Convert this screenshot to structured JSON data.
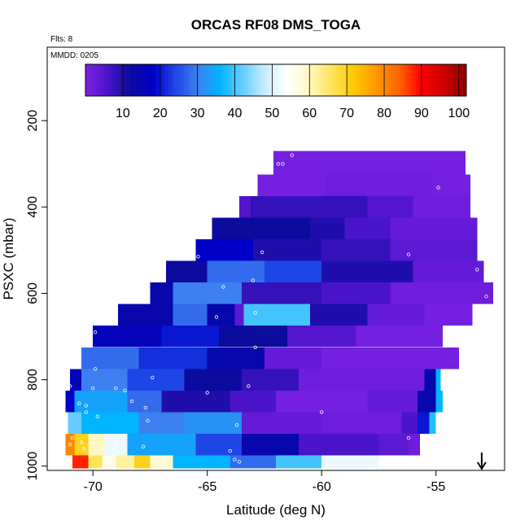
{
  "chart_data": {
    "type": "heatmap",
    "title": "ORCAS RF08 DMS_TOGA",
    "annotations": {
      "flights": "Flts: 8",
      "date": "MMDD: 0205"
    },
    "xlabel": "Latitude (deg N)",
    "ylabel": "PSXC (mbar)",
    "xlim": [
      -72,
      -52
    ],
    "ylim": [
      1010,
      30
    ],
    "y_reversed": true,
    "x_ticks": [
      -70,
      -65,
      -60,
      -55
    ],
    "y_ticks": [
      200,
      400,
      600,
      800,
      1000
    ],
    "colorbar": {
      "range": [
        0,
        102
      ],
      "ticks": [
        10,
        20,
        30,
        40,
        50,
        60,
        70,
        80,
        90,
        100
      ],
      "palette": [
        "#7e22e5",
        "#4a14c8",
        "#0b0b9e",
        "#0000c8",
        "#1e46e6",
        "#3c7ff0",
        "#00b4ff",
        "#66ccff",
        "#c8ecff",
        "#ffffff",
        "#fff7c0",
        "#ffe45a",
        "#ffc800",
        "#ff9600",
        "#ff6400",
        "#ff0000",
        "#cd0000",
        "#8b0000"
      ]
    },
    "marker": {
      "symbol": "arrow-down",
      "latitude": -53.0
    },
    "bands": [
      {
        "p_top": 270,
        "p_bot": 325,
        "segments": [
          [
            -62.1,
            -53.7,
            1
          ]
        ]
      },
      {
        "p_top": 325,
        "p_bot": 375,
        "segments": [
          [
            -62.8,
            -59.8,
            1
          ],
          [
            -59.8,
            -55.2,
            2
          ],
          [
            -55.2,
            -53.5,
            1
          ]
        ]
      },
      {
        "p_top": 375,
        "p_bot": 425,
        "segments": [
          [
            -63.6,
            -63.1,
            5
          ],
          [
            -63.1,
            -58.0,
            8
          ],
          [
            -58.0,
            -56.0,
            5
          ],
          [
            -56.0,
            -53.5,
            2
          ]
        ]
      },
      {
        "p_top": 425,
        "p_bot": 475,
        "segments": [
          [
            -64.8,
            -60.5,
            12
          ],
          [
            -60.5,
            -59.0,
            10
          ],
          [
            -59.0,
            -57.0,
            6
          ],
          [
            -57.0,
            -53.2,
            3
          ]
        ]
      },
      {
        "p_top": 475,
        "p_bot": 525,
        "segments": [
          [
            -65.5,
            -63.0,
            18
          ],
          [
            -63.0,
            -60.0,
            10
          ],
          [
            -60.0,
            -57.0,
            8
          ],
          [
            -57.0,
            -53.2,
            4
          ]
        ]
      },
      {
        "p_top": 525,
        "p_bot": 575,
        "segments": [
          [
            -66.8,
            -65.0,
            12
          ],
          [
            -65.0,
            -62.5,
            28
          ],
          [
            -62.5,
            -60.0,
            24
          ],
          [
            -60.0,
            -56.0,
            10
          ],
          [
            -56.0,
            -52.9,
            3
          ]
        ]
      },
      {
        "p_top": 575,
        "p_bot": 625,
        "segments": [
          [
            -67.5,
            -66.5,
            14
          ],
          [
            -66.5,
            -63.5,
            30
          ],
          [
            -63.5,
            -60.0,
            8
          ],
          [
            -60.0,
            -57.0,
            6
          ],
          [
            -57.0,
            -52.5,
            2
          ]
        ]
      },
      {
        "p_top": 625,
        "p_bot": 675,
        "segments": [
          [
            -68.9,
            -66.5,
            14
          ],
          [
            -66.5,
            -65.0,
            28
          ],
          [
            -65.0,
            -63.8,
            14
          ],
          [
            -63.8,
            -63.4,
            4
          ],
          [
            -63.4,
            -60.5,
            40
          ],
          [
            -60.5,
            -58.0,
            10
          ],
          [
            -58.0,
            -55.5,
            3
          ],
          [
            -55.5,
            -53.4,
            1
          ]
        ]
      },
      {
        "p_top": 675,
        "p_bot": 725,
        "segments": [
          [
            -70.0,
            -67.0,
            16
          ],
          [
            -67.0,
            -64.5,
            20
          ],
          [
            -64.5,
            -61.5,
            12
          ],
          [
            -61.5,
            -58.5,
            5
          ],
          [
            -58.5,
            -54.7,
            1
          ]
        ]
      },
      {
        "p_top": 725,
        "p_bot": 775,
        "segments": [
          [
            -70.5,
            -68.0,
            28
          ],
          [
            -68.0,
            -65.0,
            22
          ],
          [
            -65.0,
            -62.5,
            14
          ],
          [
            -62.5,
            -60.0,
            3
          ],
          [
            -60.0,
            -54.0,
            1
          ]
        ]
      },
      {
        "p_top": 775,
        "p_bot": 825,
        "segments": [
          [
            -71.0,
            -70.5,
            16
          ],
          [
            -70.5,
            -68.5,
            30
          ],
          [
            -68.5,
            -66.0,
            24
          ],
          [
            -66.0,
            -63.5,
            12
          ],
          [
            -63.5,
            -61.0,
            8
          ],
          [
            -61.0,
            -55.5,
            2
          ],
          [
            -55.5,
            -55.0,
            14
          ],
          [
            -55.0,
            -54.8,
            36
          ]
        ]
      },
      {
        "p_top": 825,
        "p_bot": 875,
        "segments": [
          [
            -71.2,
            -70.8,
            18
          ],
          [
            -70.8,
            -68.5,
            34
          ],
          [
            -68.5,
            -67.0,
            28
          ],
          [
            -67.0,
            -64.0,
            10
          ],
          [
            -64.0,
            -62.0,
            6
          ],
          [
            -62.0,
            -58.0,
            1
          ],
          [
            -58.0,
            -55.8,
            3
          ],
          [
            -55.8,
            -55.0,
            14
          ],
          [
            -55.0,
            -54.7,
            36
          ]
        ]
      },
      {
        "p_top": 875,
        "p_bot": 925,
        "segments": [
          [
            -71.1,
            -70.5,
            42
          ],
          [
            -70.5,
            -68.0,
            36
          ],
          [
            -68.0,
            -66.0,
            30
          ],
          [
            -66.0,
            -63.5,
            32
          ],
          [
            -63.5,
            -60.0,
            3
          ],
          [
            -60.0,
            -56.5,
            2
          ],
          [
            -56.5,
            -55.8,
            6
          ],
          [
            -55.8,
            -55.3,
            20
          ],
          [
            -55.3,
            -55.0,
            38
          ]
        ]
      },
      {
        "p_top": 925,
        "p_bot": 975,
        "segments": [
          [
            -71.2,
            -70.8,
            80
          ],
          [
            -70.8,
            -70.2,
            70
          ],
          [
            -70.2,
            -69.5,
            60
          ],
          [
            -69.5,
            -68.5,
            52
          ],
          [
            -68.5,
            -65.5,
            34
          ],
          [
            -65.5,
            -63.5,
            24
          ],
          [
            -63.5,
            -61.0,
            14
          ],
          [
            -61.0,
            -57.5,
            6
          ],
          [
            -57.5,
            -56.2,
            4
          ],
          [
            -56.2,
            -55.7,
            2
          ]
        ]
      },
      {
        "p_top": 975,
        "p_bot": 1005,
        "segments": [
          [
            -70.9,
            -70.2,
            88
          ],
          [
            -70.2,
            -69.6,
            66
          ],
          [
            -69.6,
            -69.0,
            56
          ],
          [
            -69.0,
            -68.2,
            62
          ],
          [
            -68.2,
            -67.5,
            70
          ],
          [
            -67.5,
            -66.5,
            58
          ],
          [
            -66.5,
            -64.0,
            36
          ],
          [
            -64.0,
            -62.0,
            28
          ],
          [
            -62.0,
            -60.0,
            40
          ],
          [
            -60.0,
            -57.5,
            52
          ]
        ]
      }
    ],
    "sample_points": [
      [
        -61.9,
        300
      ],
      [
        -61.7,
        300
      ],
      [
        -61.3,
        280
      ],
      [
        -54.9,
        355
      ],
      [
        -53.6,
        290
      ],
      [
        -56.2,
        510
      ],
      [
        -62.6,
        505
      ],
      [
        -65.4,
        515
      ],
      [
        -52.8,
        607
      ],
      [
        -63.0,
        570
      ],
      [
        -53.2,
        545
      ],
      [
        -64.3,
        585
      ],
      [
        -62.9,
        645
      ],
      [
        -64.6,
        655
      ],
      [
        -69.9,
        690
      ],
      [
        -62.9,
        725
      ],
      [
        -70.7,
        765
      ],
      [
        -69.9,
        775
      ],
      [
        -67.4,
        795
      ],
      [
        -71.0,
        815
      ],
      [
        -70.0,
        820
      ],
      [
        -69.0,
        820
      ],
      [
        -68.6,
        825
      ],
      [
        -65.0,
        830
      ],
      [
        -63.2,
        815
      ],
      [
        -70.6,
        855
      ],
      [
        -70.3,
        860
      ],
      [
        -68.3,
        850
      ],
      [
        -67.7,
        865
      ],
      [
        -70.3,
        875
      ],
      [
        -69.8,
        885
      ],
      [
        -67.6,
        895
      ],
      [
        -60.0,
        875
      ],
      [
        -63.7,
        905
      ],
      [
        -56.2,
        935
      ],
      [
        -70.5,
        945
      ],
      [
        -70.0,
        945
      ],
      [
        -69.0,
        950
      ],
      [
        -71.0,
        950
      ],
      [
        -70.4,
        960
      ],
      [
        -69.6,
        960
      ],
      [
        -69.2,
        960
      ],
      [
        -70.9,
        935
      ],
      [
        -67.8,
        955
      ],
      [
        -64.0,
        965
      ],
      [
        -63.8,
        985
      ],
      [
        -63.6,
        990
      ],
      [
        -71.1,
        985
      ],
      [
        -70.1,
        975
      ]
    ]
  }
}
